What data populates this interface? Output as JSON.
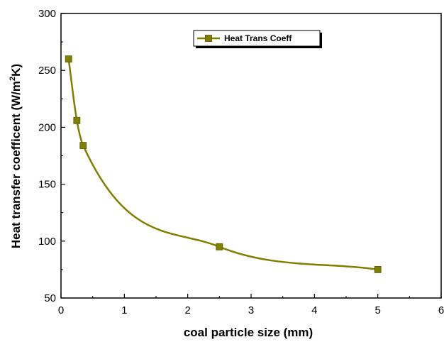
{
  "chart_data": {
    "type": "line",
    "title": "",
    "xlabel": "coal particle size (mm)",
    "ylabel": "Heat transfer coefficent (W/m",
    "ylabel_sup": "2",
    "ylabel_end": "K)",
    "xlim": [
      0,
      6
    ],
    "ylim": [
      50,
      300
    ],
    "xticks": [
      "0",
      "1",
      "2",
      "3",
      "4",
      "5",
      "6"
    ],
    "yticks": [
      "50",
      "100",
      "150",
      "200",
      "250",
      "300"
    ],
    "grid": false,
    "legend_position": "top-right",
    "series": [
      {
        "name": "Heat Trans Coeff",
        "color": "#808000",
        "marker": "square",
        "x": [
          0.12,
          0.25,
          0.35,
          2.5,
          5.0
        ],
        "y": [
          260,
          206,
          184,
          95,
          75
        ]
      }
    ]
  }
}
